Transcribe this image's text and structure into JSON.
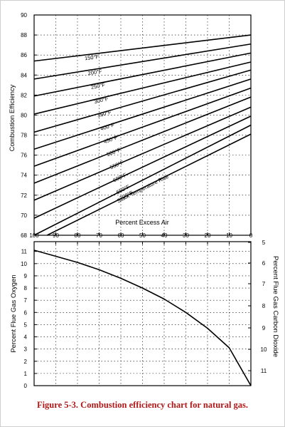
{
  "caption": "Figure 5-3. Combustion efficiency chart for natural gas.",
  "chart_data": [
    {
      "type": "line",
      "ylabel": "Combustion Efficiency",
      "xlabel": "Percent Excess Air",
      "ylim": [
        68,
        90
      ],
      "yticks": [
        "68",
        "70",
        "72",
        "74",
        "76",
        "78",
        "80",
        "82",
        "84",
        "86",
        "88",
        "90"
      ],
      "xlim": [
        100,
        0
      ],
      "xticks": [
        "100",
        "90",
        "80",
        "70",
        "60",
        "50",
        "40",
        "30",
        "20",
        "10",
        "0"
      ],
      "grid": true,
      "annotation": "Stack Temperature Rise",
      "series": [
        {
          "name": "150°F",
          "x": [
            100,
            0
          ],
          "y": [
            85.4,
            88.0
          ]
        },
        {
          "name": "200°F",
          "x": [
            100,
            0
          ],
          "y": [
            83.6,
            87.1
          ]
        },
        {
          "name": "250°F",
          "x": [
            100,
            0
          ],
          "y": [
            81.9,
            86.2
          ]
        },
        {
          "name": "300°F",
          "x": [
            100,
            0
          ],
          "y": [
            80.1,
            85.3
          ]
        },
        {
          "name": "350°F",
          "x": [
            100,
            0
          ],
          "y": [
            78.3,
            84.5
          ]
        },
        {
          "name": "400°F",
          "x": [
            100,
            0
          ],
          "y": [
            76.6,
            83.6
          ]
        },
        {
          "name": "450°F",
          "x": [
            100,
            0
          ],
          "y": [
            74.9,
            82.7
          ]
        },
        {
          "name": "500°F",
          "x": [
            100,
            0
          ],
          "y": [
            73.2,
            81.8
          ]
        },
        {
          "name": "550°F",
          "x": [
            100,
            0
          ],
          "y": [
            71.5,
            80.8
          ]
        },
        {
          "name": "600°F",
          "x": [
            100,
            0
          ],
          "y": [
            69.7,
            79.9
          ]
        },
        {
          "name": "650°F",
          "x": [
            100,
            0
          ],
          "y": [
            68.0,
            79.0
          ]
        },
        {
          "name": "700°F",
          "x": [
            94,
            0
          ],
          "y": [
            68.0,
            78.1
          ]
        }
      ]
    },
    {
      "type": "line",
      "ylabel": "Percent Flue Gas Oxygen",
      "ylabel_right": "Percent Flue Gas Carbon Dioxide",
      "ylim": [
        0,
        11.8
      ],
      "yticks": [
        "0",
        "1",
        "2",
        "3",
        "4",
        "5",
        "6",
        "7",
        "8",
        "9",
        "10",
        "11"
      ],
      "yticks_right": [
        "5",
        "6",
        "7",
        "8",
        "9",
        "10",
        "11"
      ],
      "xlim": [
        100,
        0
      ],
      "grid": true,
      "series": [
        {
          "x": [
            100,
            90,
            80,
            70,
            60,
            50,
            40,
            30,
            20,
            10,
            0
          ],
          "y": [
            11.1,
            10.6,
            10.1,
            9.5,
            8.8,
            8.0,
            7.1,
            6.0,
            4.7,
            3.1,
            0
          ]
        }
      ]
    }
  ]
}
